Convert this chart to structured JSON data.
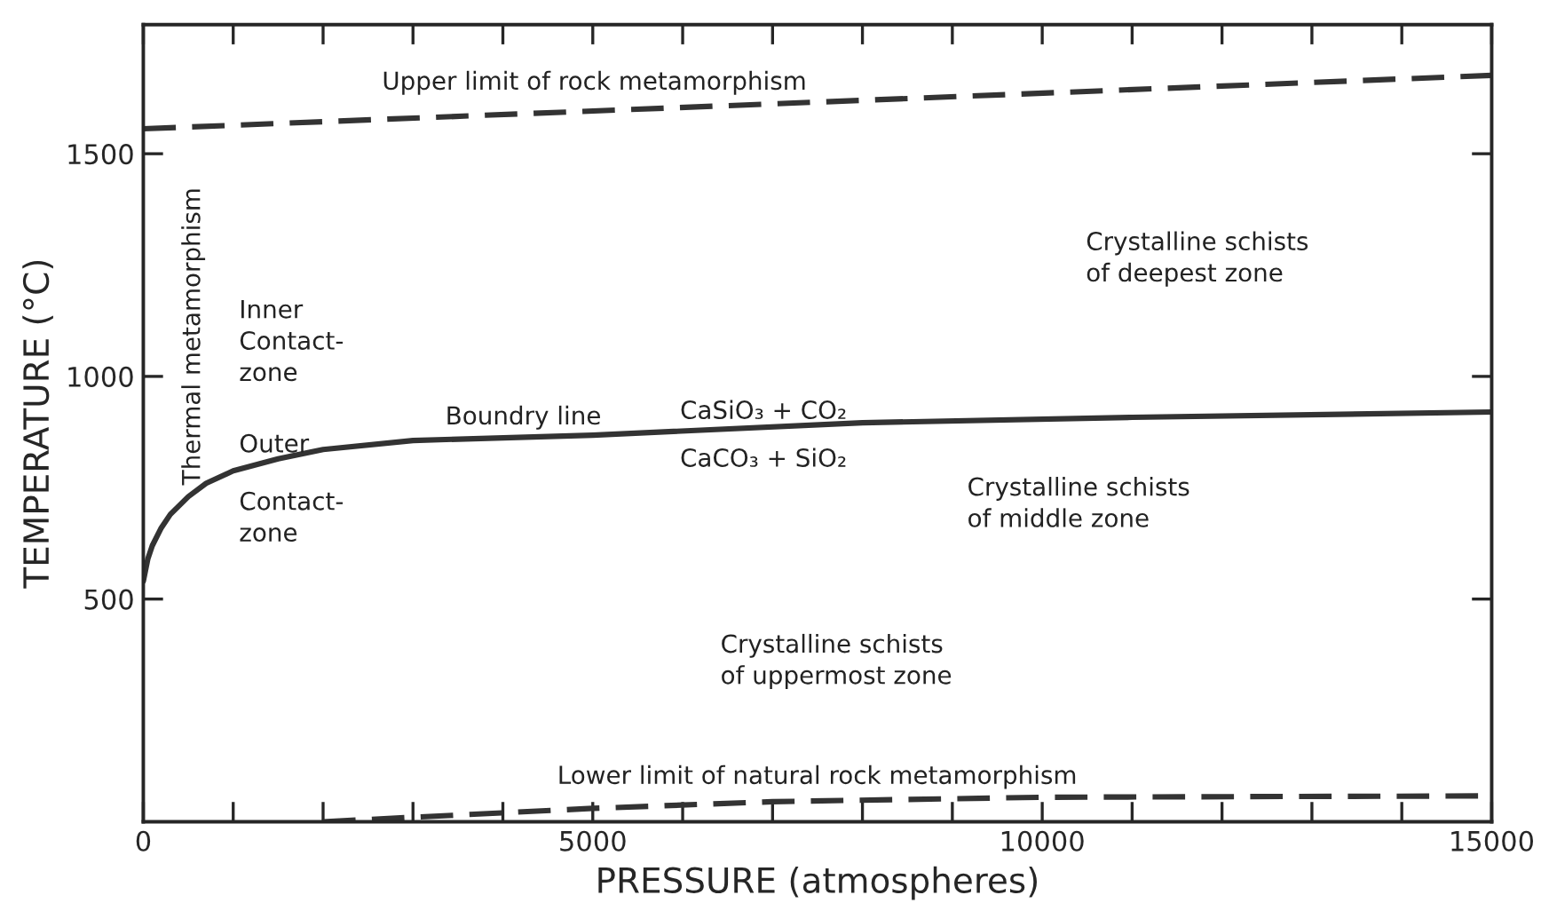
{
  "chart_data": {
    "type": "line",
    "xlabel": "PRESSURE (atmospheres)",
    "ylabel": "TEMPERATURE (°C)",
    "xlim": [
      0,
      15000
    ],
    "ylim": [
      0,
      1790
    ],
    "xticks": [
      0,
      {
        "value": 1000,
        "label": null
      },
      {
        "value": 2000,
        "label": null
      },
      {
        "value": 3000,
        "label": null
      },
      {
        "value": 4000,
        "label": null
      },
      5000,
      {
        "value": 6000,
        "label": null
      },
      {
        "value": 7000,
        "label": null
      },
      {
        "value": 8000,
        "label": null
      },
      {
        "value": 9000,
        "label": null
      },
      10000,
      {
        "value": 11000,
        "label": null
      },
      {
        "value": 12000,
        "label": null
      },
      {
        "value": 13000,
        "label": null
      },
      {
        "value": 14000,
        "label": null
      },
      15000
    ],
    "yticks": [
      500,
      1000,
      1500
    ],
    "grid": false,
    "legend": false,
    "series": [
      {
        "color": "#333333",
        "line_style": "dashed",
        "x": [
          0,
          15000
        ],
        "values": [
          1556,
          1676
        ]
      },
      {
        "color": "#333333",
        "line_style": "solid",
        "x": [
          0,
          50,
          100,
          200,
          300,
          500,
          700,
          1000,
          1500,
          2000,
          3000,
          5000,
          8000,
          11000,
          15000
        ],
        "values": [
          540,
          590,
          620,
          660,
          690,
          730,
          760,
          788,
          815,
          836,
          856,
          868,
          896,
          908,
          920
        ]
      },
      {
        "color": "#333333",
        "line_style": "dashed",
        "x": [
          2000,
          3000,
          5000,
          7000,
          10000,
          15000
        ],
        "values": [
          0,
          10,
          30,
          45,
          55,
          58
        ]
      }
    ],
    "annotations": [
      "Upper limit of rock metamorphism",
      "Thermal metamorphism",
      "Inner\nContact-\nzone",
      "Outer",
      "Contact-\nzone",
      "Boundry line",
      "CaSiO₃ + CO₂",
      "CaCO₃ + SiO₂",
      "Crystalline schists\nof deepest zone",
      "Crystalline schists\nof middle zone",
      "Crystalline schists\nof uppermost zone",
      "Lower limit of natural rock metamorphism"
    ]
  }
}
